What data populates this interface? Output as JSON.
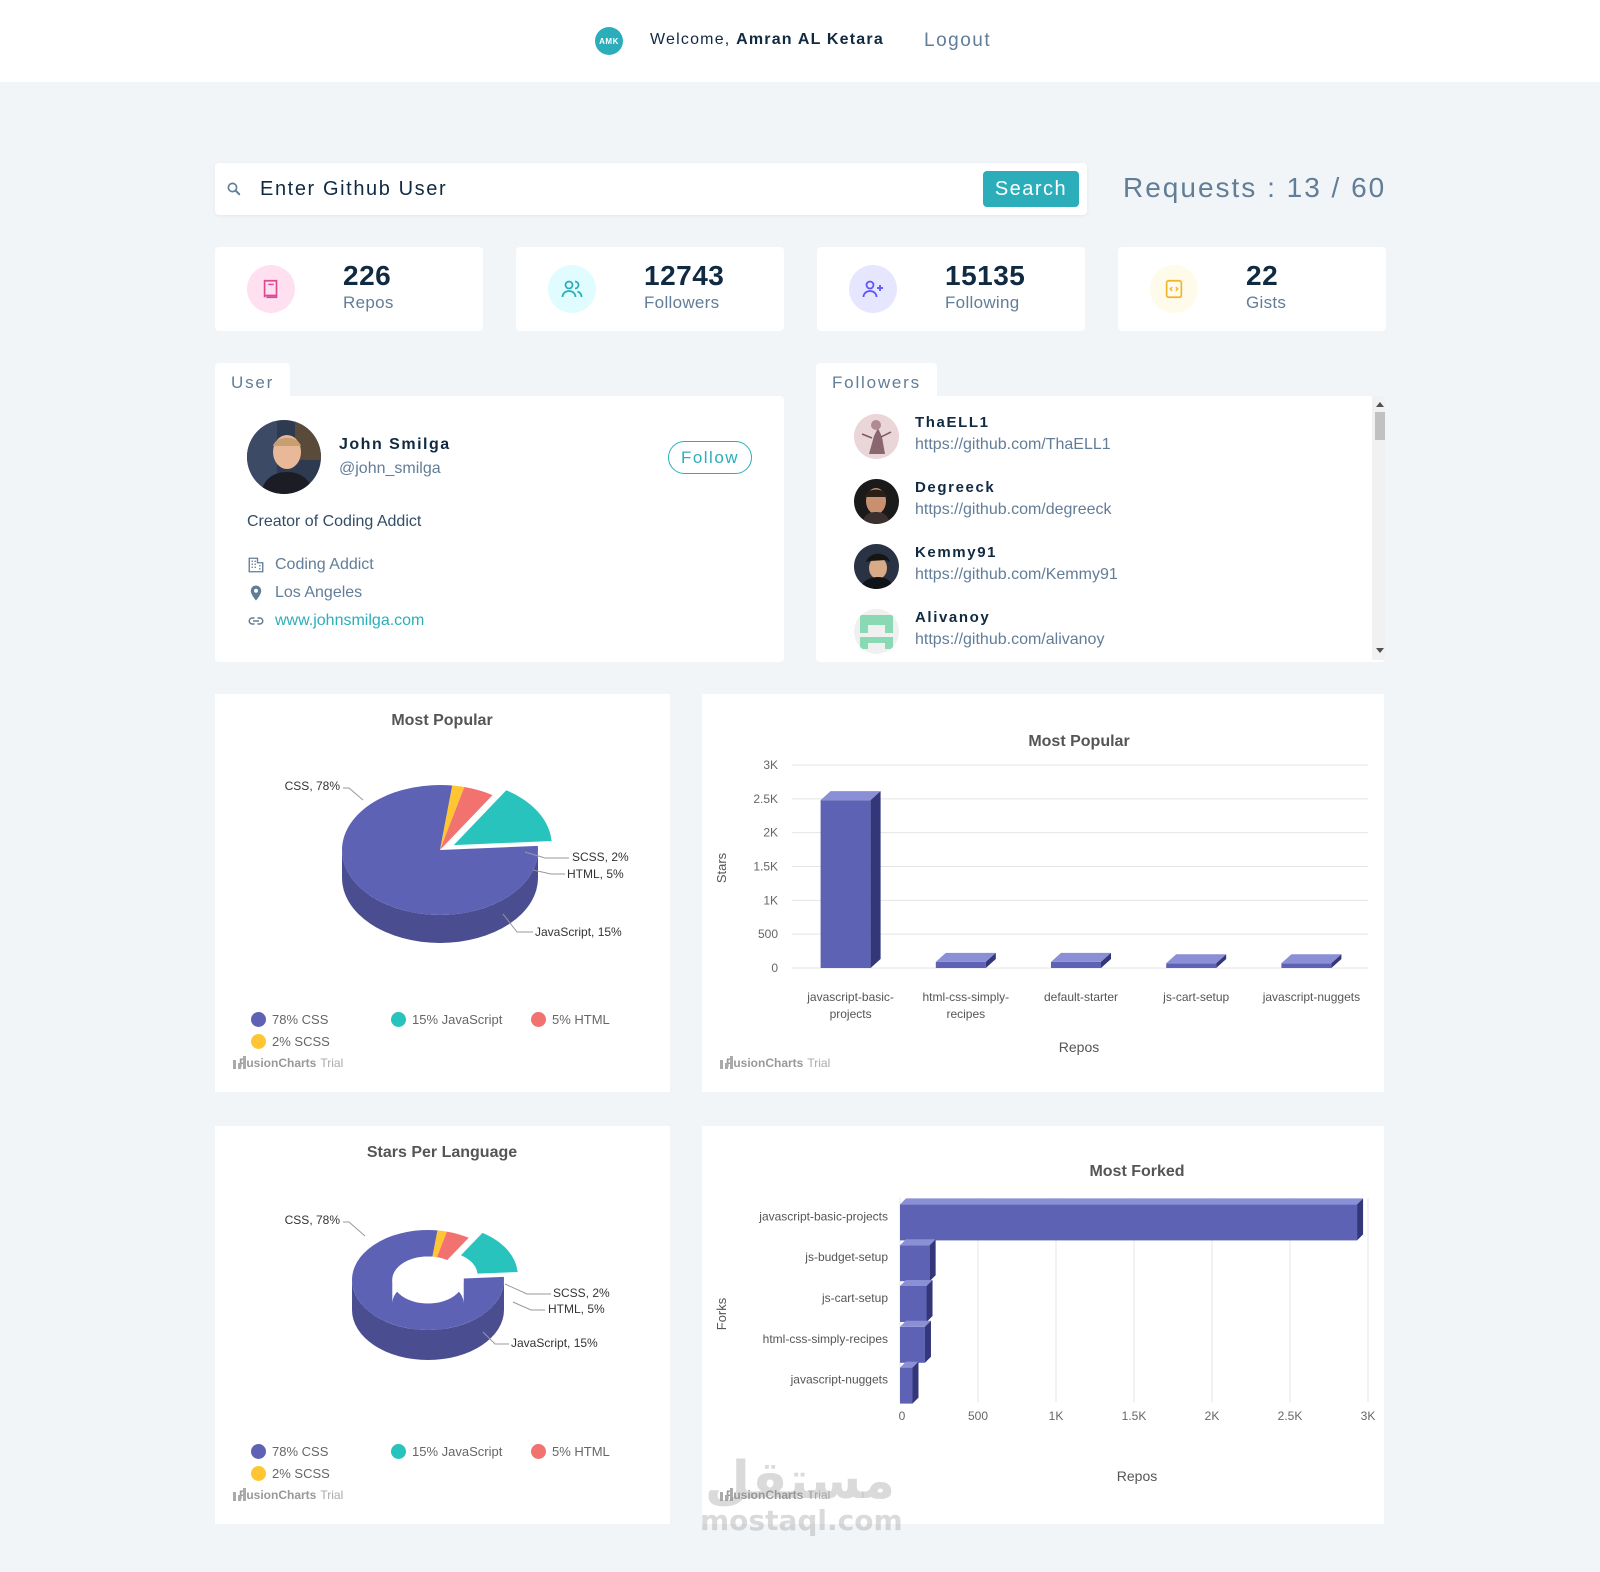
{
  "navbar": {
    "logo_text": "AMK",
    "welcome_prefix": "Welcome,",
    "user_name": "Amran AL Ketara",
    "logout_label": "Logout"
  },
  "search": {
    "placeholder": "Enter Github User",
    "button_label": "Search",
    "requests_label": "Requests : 13 / 60"
  },
  "stats": [
    {
      "value": "226",
      "label": "Repos",
      "icon": "book-icon",
      "color": "#da4a91",
      "bg": "#ffe0f0"
    },
    {
      "value": "12743",
      "label": "Followers",
      "icon": "users-icon",
      "color": "#2caeba",
      "bg": "#e0fcff"
    },
    {
      "value": "15135",
      "label": "Following",
      "icon": "user-plus-icon",
      "color": "#5d55fa",
      "bg": "#e6e6ff"
    },
    {
      "value": "22",
      "label": "Gists",
      "icon": "code-file-icon",
      "color": "#f0b429",
      "bg": "#fffbea"
    }
  ],
  "user_section": {
    "tab_label": "User",
    "name": "John Smilga",
    "handle": "@john_smilga",
    "follow_label": "Follow",
    "bio": "Creator of Coding Addict",
    "company": "Coding Addict",
    "location": "Los Angeles",
    "blog": "www.johnsmilga.com"
  },
  "followers_section": {
    "tab_label": "Followers",
    "items": [
      {
        "name": "ThaELL1",
        "url": "https://github.com/ThaELL1"
      },
      {
        "name": "Degreeck",
        "url": "https://github.com/degreeck"
      },
      {
        "name": "Kemmy91",
        "url": "https://github.com/Kemmy91"
      },
      {
        "name": "Alivanoy",
        "url": "https://github.com/alivanoy"
      }
    ]
  },
  "fusioncharts_credit": {
    "brand": "FusionCharts",
    "suffix": "Trial"
  },
  "chart_data": [
    {
      "type": "pie",
      "title": "Most Popular",
      "slices": [
        {
          "label": "CSS",
          "value": 78,
          "color": "#5d62b5"
        },
        {
          "label": "JavaScript",
          "value": 15,
          "color": "#29c3be"
        },
        {
          "label": "HTML",
          "value": 5,
          "color": "#f2726f"
        },
        {
          "label": "SCSS",
          "value": 2,
          "color": "#ffc533"
        }
      ],
      "data_labels": [
        "CSS, 78%",
        "SCSS, 2%",
        "HTML, 5%",
        "JavaScript, 15%"
      ],
      "legend": [
        "78% CSS",
        "15% JavaScript",
        "5% HTML",
        "2% SCSS"
      ]
    },
    {
      "type": "bar",
      "title": "Most Popular",
      "xlabel": "Repos",
      "ylabel": "Stars",
      "categories": [
        "javascript-basic-projects",
        "html-css-simply-recipes",
        "default-starter",
        "js-cart-setup",
        "javascript-nuggets"
      ],
      "category_lines": [
        [
          "javascript-basic-",
          "projects"
        ],
        [
          "html-css-simply-",
          "recipes"
        ],
        [
          "default-starter"
        ],
        [
          "js-cart-setup"
        ],
        [
          "javascript-nuggets"
        ]
      ],
      "values": [
        2480,
        90,
        90,
        70,
        70
      ],
      "ylim": [
        0,
        3000
      ],
      "yticks": [
        0,
        500,
        1000,
        1500,
        2000,
        2500,
        3000
      ],
      "ytick_labels": [
        "0",
        "500",
        "1K",
        "1.5K",
        "2K",
        "2.5K",
        "3K"
      ]
    },
    {
      "type": "doughnut",
      "title": "Stars Per Language",
      "slices": [
        {
          "label": "CSS",
          "value": 78,
          "color": "#5d62b5"
        },
        {
          "label": "JavaScript",
          "value": 15,
          "color": "#29c3be"
        },
        {
          "label": "HTML",
          "value": 5,
          "color": "#f2726f"
        },
        {
          "label": "SCSS",
          "value": 2,
          "color": "#ffc533"
        }
      ],
      "data_labels": [
        "CSS, 78%",
        "SCSS, 2%",
        "HTML, 5%",
        "JavaScript, 15%"
      ],
      "legend": [
        "78% CSS",
        "15% JavaScript",
        "5% HTML",
        "2% SCSS"
      ]
    },
    {
      "type": "bar",
      "orientation": "horizontal",
      "title": "Most Forked",
      "xlabel": "Repos",
      "ylabel": "Forks",
      "categories": [
        "javascript-basic-projects",
        "js-budget-setup",
        "js-cart-setup",
        "html-css-simply-recipes",
        "javascript-nuggets"
      ],
      "values": [
        2930,
        190,
        170,
        160,
        80
      ],
      "xlim": [
        0,
        3000
      ],
      "xticks": [
        0,
        500,
        1000,
        1500,
        2000,
        2500,
        3000
      ],
      "xtick_labels": [
        "0",
        "500",
        "1K",
        "1.5K",
        "2K",
        "2.5K",
        "3K"
      ]
    }
  ],
  "watermark": {
    "arabic": "مستقل",
    "latin": "mostaql.com"
  }
}
